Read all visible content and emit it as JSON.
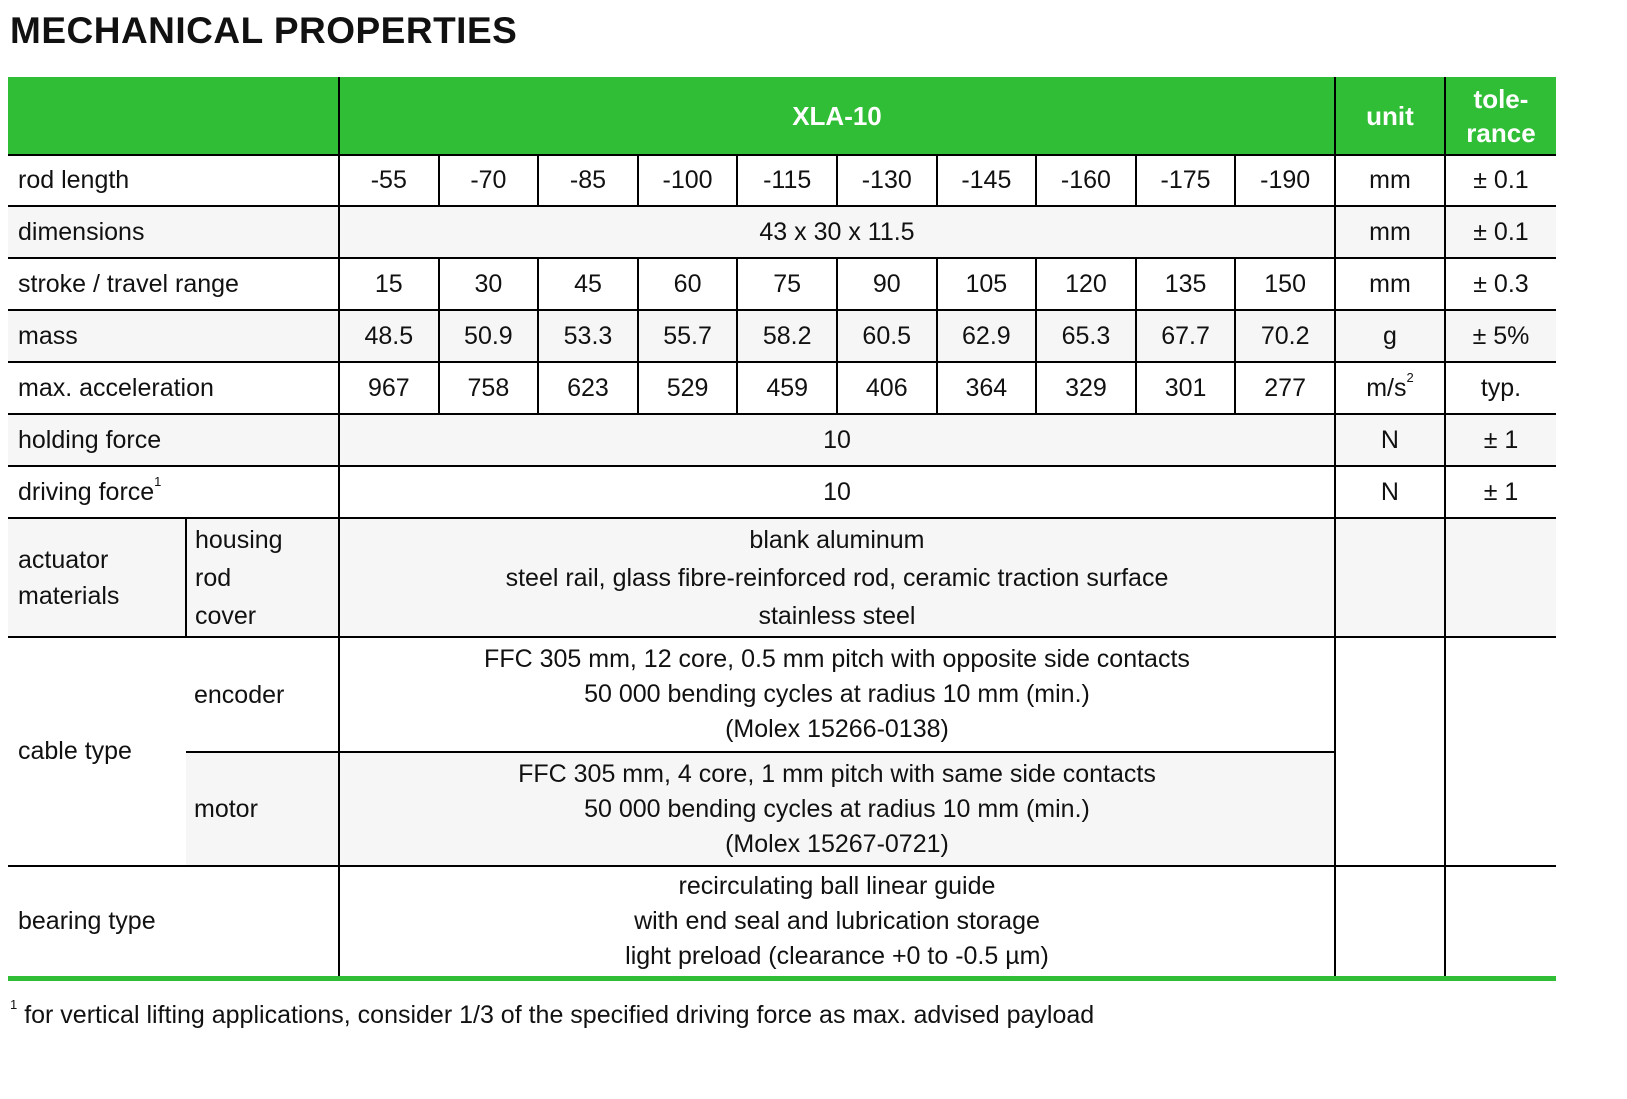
{
  "title": "MECHANICAL PROPERTIES",
  "header": {
    "model": "XLA-10",
    "unit": "unit",
    "tolerance": "tole-\nrance"
  },
  "rows": [
    {
      "label": "rod length",
      "values": [
        "-55",
        "-70",
        "-85",
        "-100",
        "-115",
        "-130",
        "-145",
        "-160",
        "-175",
        "-190"
      ],
      "unit": "mm",
      "tol": "± 0.1"
    },
    {
      "label": "dimensions",
      "value": "43 x 30 x 11.5",
      "unit": "mm",
      "tol": "± 0.1"
    },
    {
      "label": "stroke / travel range",
      "values": [
        "15",
        "30",
        "45",
        "60",
        "75",
        "90",
        "105",
        "120",
        "135",
        "150"
      ],
      "unit": "mm",
      "tol": "± 0.3"
    },
    {
      "label": "mass",
      "values": [
        "48.5",
        "50.9",
        "53.3",
        "55.7",
        "58.2",
        "60.5",
        "62.9",
        "65.3",
        "67.7",
        "70.2"
      ],
      "unit": "g",
      "tol": "± 5%"
    },
    {
      "label": "max. acceleration",
      "values": [
        "967",
        "758",
        "623",
        "529",
        "459",
        "406",
        "364",
        "329",
        "301",
        "277"
      ],
      "unit": "m/s",
      "unit_sup": "2",
      "tol": "typ."
    },
    {
      "label": "holding force",
      "value": "10",
      "unit": "N",
      "tol": "± 1"
    },
    {
      "label": "driving force",
      "label_sup": "1",
      "value": "10",
      "unit": "N",
      "tol": "± 1"
    }
  ],
  "materials": {
    "label": "actuator\nmaterials",
    "items": [
      {
        "part": "housing",
        "value": "blank aluminum"
      },
      {
        "part": "rod",
        "value": "steel rail, glass fibre-reinforced rod, ceramic traction surface"
      },
      {
        "part": "cover",
        "value": "stainless steel"
      }
    ]
  },
  "cable": {
    "label": "cable type",
    "encoder": {
      "part": "encoder",
      "lines": [
        "FFC 305 mm, 12 core, 0.5 mm pitch with opposite side contacts",
        "50 000 bending cycles at radius 10 mm (min.)",
        "(Molex 15266-0138)"
      ]
    },
    "motor": {
      "part": "motor",
      "lines": [
        "FFC 305 mm, 4 core, 1 mm pitch with same side contacts",
        "50 000 bending cycles at radius 10 mm (min.)",
        "(Molex 15267-0721)"
      ]
    }
  },
  "bearing": {
    "label": "bearing type",
    "lines": [
      "recirculating ball linear guide",
      "with end seal and lubrication storage",
      "light preload (clearance +0 to -0.5 µm)"
    ]
  },
  "footnote": {
    "mark": "1",
    "text": "for vertical lifting applications, consider 1/3 of the specified driving force as max. advised payload"
  }
}
